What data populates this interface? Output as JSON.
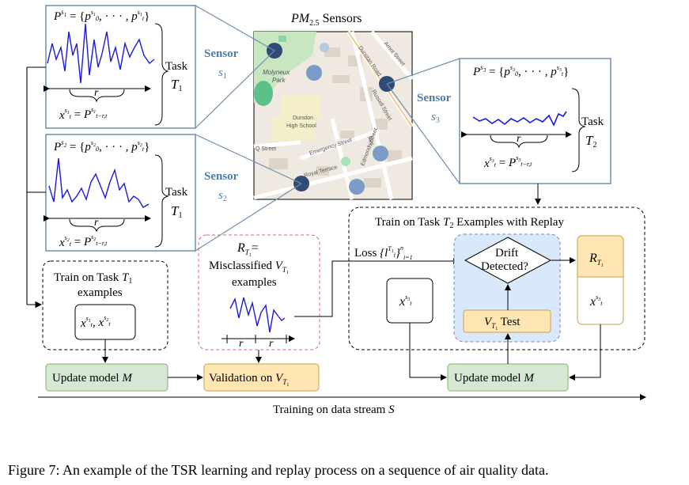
{
  "map": {
    "title_math": "PM",
    "title_sub": "2.5",
    "title_rest": " Sensors",
    "street_labels": [
      "Molyneux",
      "Park",
      "Dunston",
      "High School",
      "Dunstan Road",
      "Arnot Street",
      "Russell Street",
      "Emergency Street",
      "Royal Terrace",
      "Edmonds Street",
      "Mar",
      "Q Street"
    ]
  },
  "sensors": [
    {
      "word": "Sensor",
      "id": "s",
      "sub": "1"
    },
    {
      "word": "Sensor",
      "id": "s",
      "sub": "2"
    },
    {
      "word": "Sensor",
      "id": "s",
      "sub": "3"
    }
  ],
  "panels": {
    "p1": {
      "formula": "P^{s1} = {p0^{s1}, ..., pt^{s1}}",
      "task_word": "Task",
      "task_sym": "T",
      "task_sub": "1",
      "window": "r",
      "x_formula": "x_t^{s1} = P^{s1}_{t-r,t}"
    },
    "p2": {
      "formula": "P^{s2} = {p0^{s2}, ..., pt^{s2}}",
      "task_word": "Task",
      "task_sym": "T",
      "task_sub": "1",
      "window": "r",
      "x_formula": "x_t^{s2} = P^{s2}_{t-r,t}"
    },
    "p3": {
      "formula": "P^{s3} = {p0^{s3}, ..., pt^{s3}}",
      "task_word": "Task",
      "task_sym": "T",
      "task_sub": "2",
      "window": "r",
      "x_formula": "x_t^{s3} = P^{s3}_{t-r,t}"
    }
  },
  "boxes": {
    "train_t1_title": "Train on Task",
    "train_t1_sub": "examples",
    "train_t1_inputs": "x_t^{s1}, x_t^{s2}",
    "misclassified_line1": "= ",
    "misclassified_line2": "Misclassified",
    "misclassified_line3": "examples",
    "window_r": "r",
    "train_t2_title_a": "Train on Task",
    "train_t2_title_b": "Examples with Replay",
    "loss_label": "Loss",
    "drift_line1": "Drift",
    "drift_line2": "Detected?",
    "vt1_test": "Test",
    "update_model": "Update model",
    "validation": "Validation on",
    "training_stream": "Training on data stream"
  },
  "caption": "Figure 7: An example of the TSR learning and replay process on a sequence of air quality data.",
  "colors": {
    "sensor_blue": "#4c7ea8",
    "panel_border": "#6d8fb0",
    "green_box": "#d5e8d4",
    "green_border": "#82b366",
    "orange_box": "#ffe6b3",
    "orange_border": "#c9a14a",
    "blue_region": "#dae8fc",
    "blue_region_border": "#6c8ebf",
    "dashed_red": "#e06666",
    "line_blue": "#1a1adb"
  }
}
